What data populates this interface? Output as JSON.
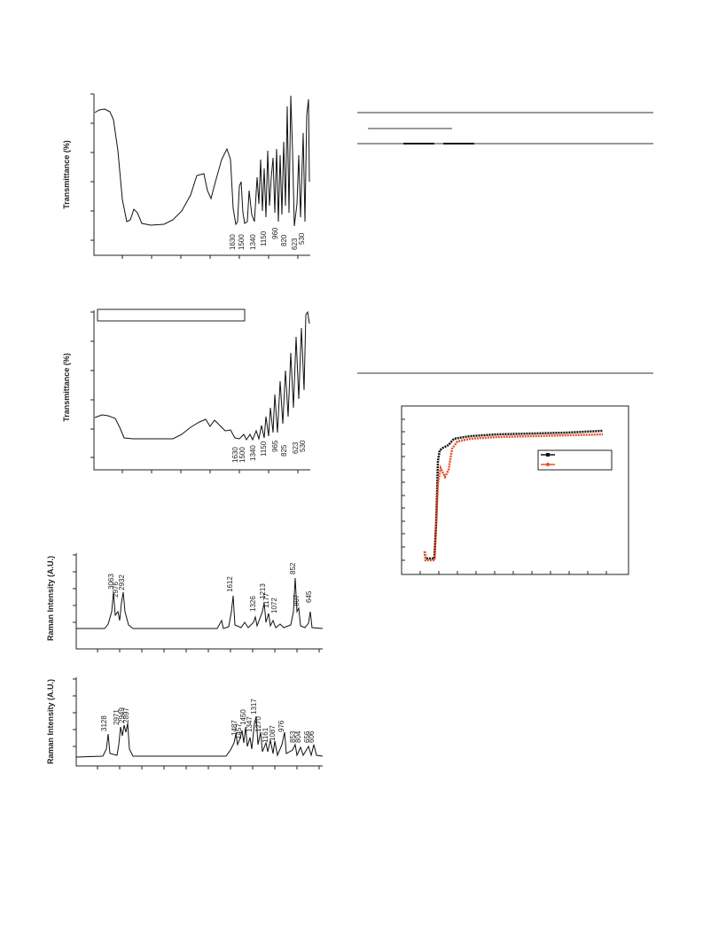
{
  "figures": [
    {
      "y_label": "Transmittance (%)",
      "peaks": [
        1630,
        1500,
        1340,
        1150,
        960,
        820,
        623,
        530
      ]
    },
    {
      "y_label": "Transmittance (%)",
      "peaks": [
        1630,
        1500,
        1340,
        1150,
        965,
        825,
        623,
        530
      ]
    },
    {
      "y_label": "Raman Intensity (A.U.)",
      "peaks": [
        3063,
        2976,
        2932,
        1612,
        1326,
        1213,
        1177,
        1072,
        852,
        807,
        645
      ]
    },
    {
      "y_label": "Raman Intensity (A.U.)",
      "peaks": [
        3128,
        2971,
        2949,
        2897,
        1487,
        1457,
        1450,
        1347,
        1317,
        1270,
        1161,
        1087,
        976,
        853,
        804,
        656,
        606
      ]
    }
  ]
}
